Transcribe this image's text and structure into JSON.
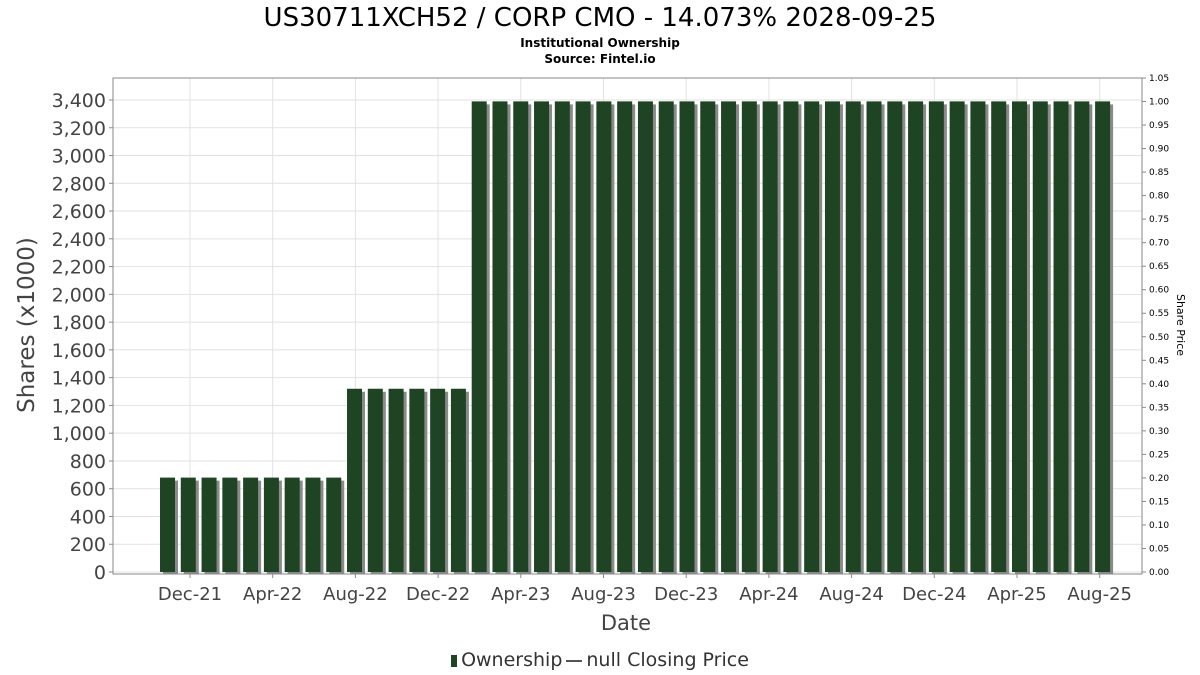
{
  "chart_data": {
    "type": "bar",
    "title": "US30711XCH52 / CORP CMO - 14.073% 2028-09-25",
    "subtitle_1": "Institutional Ownership",
    "subtitle_2": "Source: Fintel.io",
    "xlabel": "Date",
    "ylabel": "Shares (x1000)",
    "y2label": "Share Price",
    "ylim": [
      0,
      3550
    ],
    "y2lim": [
      0,
      1.05
    ],
    "grid": true,
    "legend_position": "bottom",
    "y_ticks": [
      "0",
      "200",
      "400",
      "600",
      "800",
      "1,000",
      "1,200",
      "1,400",
      "1,600",
      "1,800",
      "2,000",
      "2,200",
      "2,400",
      "2,600",
      "2,800",
      "3,000",
      "3,200",
      "3,400"
    ],
    "y2_ticks": [
      "0.00",
      "0.05",
      "0.10",
      "0.15",
      "0.20",
      "0.25",
      "0.30",
      "0.35",
      "0.40",
      "0.45",
      "0.50",
      "0.55",
      "0.60",
      "0.65",
      "0.70",
      "0.75",
      "0.80",
      "0.85",
      "0.90",
      "0.95",
      "1.00",
      "1.05"
    ],
    "x_ticks": [
      "Dec-21",
      "Apr-22",
      "Aug-22",
      "Dec-22",
      "Apr-23",
      "Aug-23",
      "Dec-23",
      "Apr-24",
      "Aug-24",
      "Dec-24",
      "Apr-25",
      "Aug-25"
    ],
    "series": [
      {
        "name": "Ownership",
        "color": "#1e4423",
        "values": [
          680,
          680,
          680,
          680,
          680,
          680,
          680,
          680,
          680,
          1320,
          1320,
          1320,
          1320,
          1320,
          1320,
          3390,
          3390,
          3390,
          3390,
          3390,
          3390,
          3390,
          3390,
          3390,
          3390,
          3390,
          3390,
          3390,
          3390,
          3390,
          3390,
          3390,
          3390,
          3390,
          3390,
          3390,
          3390,
          3390,
          3390,
          3390,
          3390,
          3390,
          3390,
          3390,
          3390,
          3390
        ]
      }
    ],
    "legend": {
      "ownership_label": "Ownership",
      "price_label": "null Closing Price"
    }
  }
}
